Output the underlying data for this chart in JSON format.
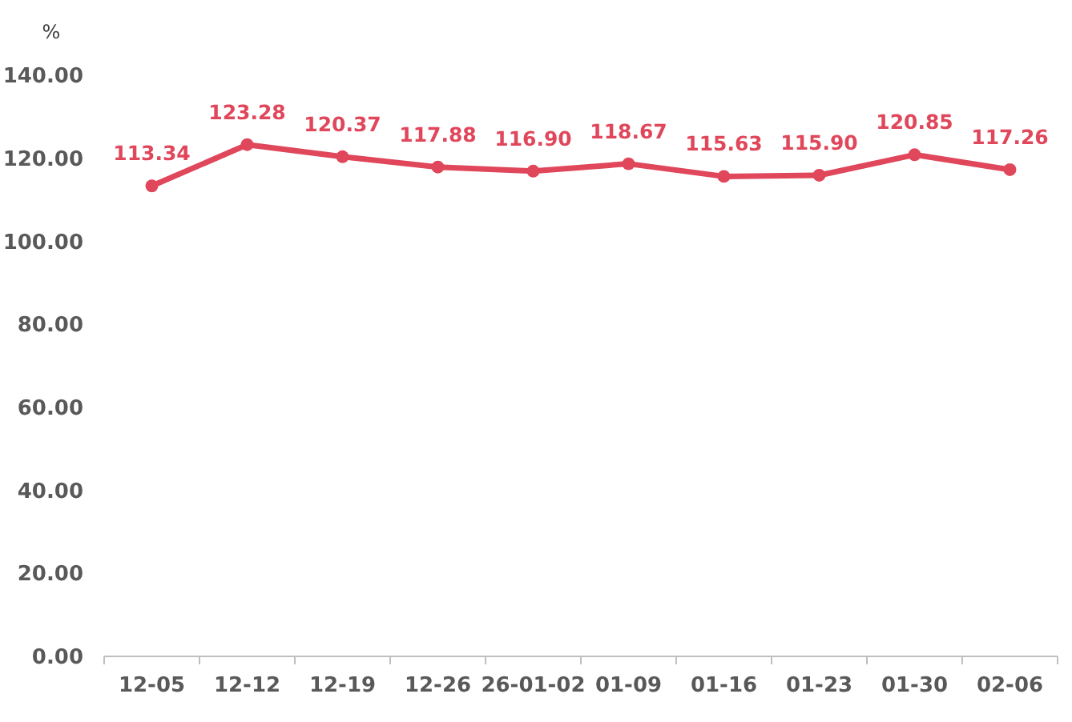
{
  "chart_data": {
    "type": "line",
    "ylabel": "%",
    "categories": [
      "12-05",
      "12-12",
      "12-19",
      "12-26",
      "26-01-02",
      "01-09",
      "01-16",
      "01-23",
      "01-30",
      "02-06"
    ],
    "series": [
      {
        "color": "#e0475b",
        "values": [
          113.34,
          123.28,
          120.37,
          117.88,
          116.9,
          118.67,
          115.63,
          115.9,
          120.85,
          117.26
        ],
        "value_labels": [
          "113.34",
          "123.28",
          "120.37",
          "117.88",
          "116.90",
          "118.67",
          "115.63",
          "115.90",
          "120.85",
          "117.26"
        ]
      }
    ],
    "ylim": [
      0,
      140
    ],
    "yticks": [
      {
        "value": 0,
        "label": "0.00"
      },
      {
        "value": 20,
        "label": "20.00"
      },
      {
        "value": 40,
        "label": "40.00"
      },
      {
        "value": 60,
        "label": "60.00"
      },
      {
        "value": 80,
        "label": "80.00"
      },
      {
        "value": 100,
        "label": "100.00"
      },
      {
        "value": 120,
        "label": "120.00"
      },
      {
        "value": 140,
        "label": "140.00"
      }
    ],
    "marker": "circle",
    "line_style": "solid",
    "grid": false
  }
}
